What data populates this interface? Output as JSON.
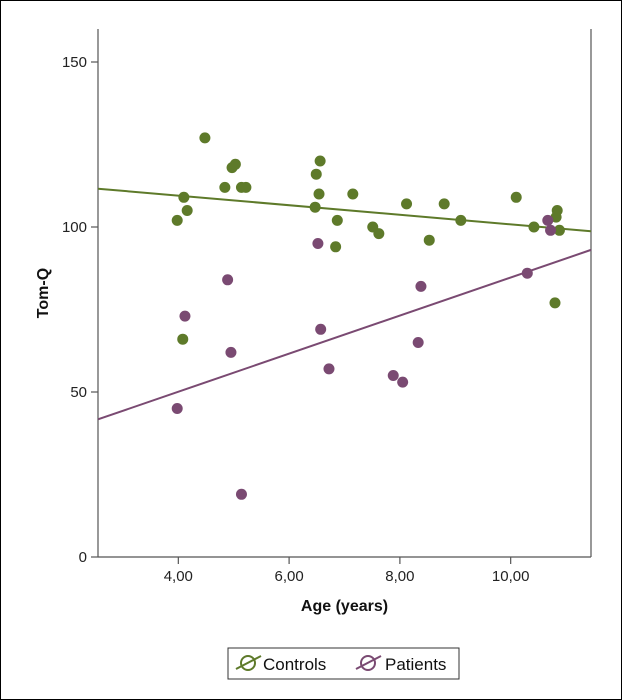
{
  "chart_data": {
    "type": "scatter",
    "title": "",
    "xlabel": "Age (years)",
    "ylabel": "Tom-Q",
    "xlim": [
      2.55,
      11.45
    ],
    "ylim": [
      0,
      160
    ],
    "x_ticks": [
      4,
      6,
      8,
      10
    ],
    "x_tick_labels": [
      "4,00",
      "6,00",
      "8,00",
      "10,00"
    ],
    "y_ticks": [
      0,
      50,
      100,
      150
    ],
    "y_tick_labels": [
      "0",
      "50",
      "100",
      "150"
    ],
    "grid": false,
    "legend_position": "bottom-center",
    "series": [
      {
        "name": "Controls",
        "color": "#5e7a2a",
        "points": [
          [
            3.98,
            102
          ],
          [
            4.08,
            66
          ],
          [
            4.1,
            109
          ],
          [
            4.16,
            105
          ],
          [
            4.48,
            127
          ],
          [
            4.84,
            112
          ],
          [
            4.97,
            118
          ],
          [
            5.03,
            119
          ],
          [
            5.14,
            112
          ],
          [
            5.22,
            112
          ],
          [
            6.47,
            106
          ],
          [
            6.49,
            116
          ],
          [
            6.54,
            110
          ],
          [
            6.56,
            120
          ],
          [
            6.87,
            102
          ],
          [
            6.84,
            94
          ],
          [
            7.15,
            110
          ],
          [
            7.51,
            100
          ],
          [
            7.62,
            98
          ],
          [
            8.12,
            107
          ],
          [
            8.53,
            96
          ],
          [
            8.8,
            107
          ],
          [
            9.1,
            102
          ],
          [
            10.1,
            109
          ],
          [
            10.42,
            100
          ],
          [
            10.8,
            77
          ],
          [
            10.82,
            103
          ],
          [
            10.84,
            105
          ],
          [
            10.88,
            99
          ]
        ],
        "fit": {
          "intercept": 115.3,
          "slope": -1.45
        }
      },
      {
        "name": "Patients",
        "color": "#7a4a72",
        "points": [
          [
            3.98,
            45
          ],
          [
            4.12,
            73
          ],
          [
            4.89,
            84
          ],
          [
            4.95,
            62
          ],
          [
            5.14,
            19
          ],
          [
            6.52,
            95
          ],
          [
            6.57,
            69
          ],
          [
            6.72,
            57
          ],
          [
            7.88,
            55
          ],
          [
            8.05,
            53
          ],
          [
            8.33,
            65
          ],
          [
            8.38,
            82
          ],
          [
            10.3,
            86
          ],
          [
            10.67,
            102
          ],
          [
            10.72,
            99
          ]
        ],
        "fit": {
          "intercept": 27.0,
          "slope": 5.77
        }
      }
    ]
  }
}
